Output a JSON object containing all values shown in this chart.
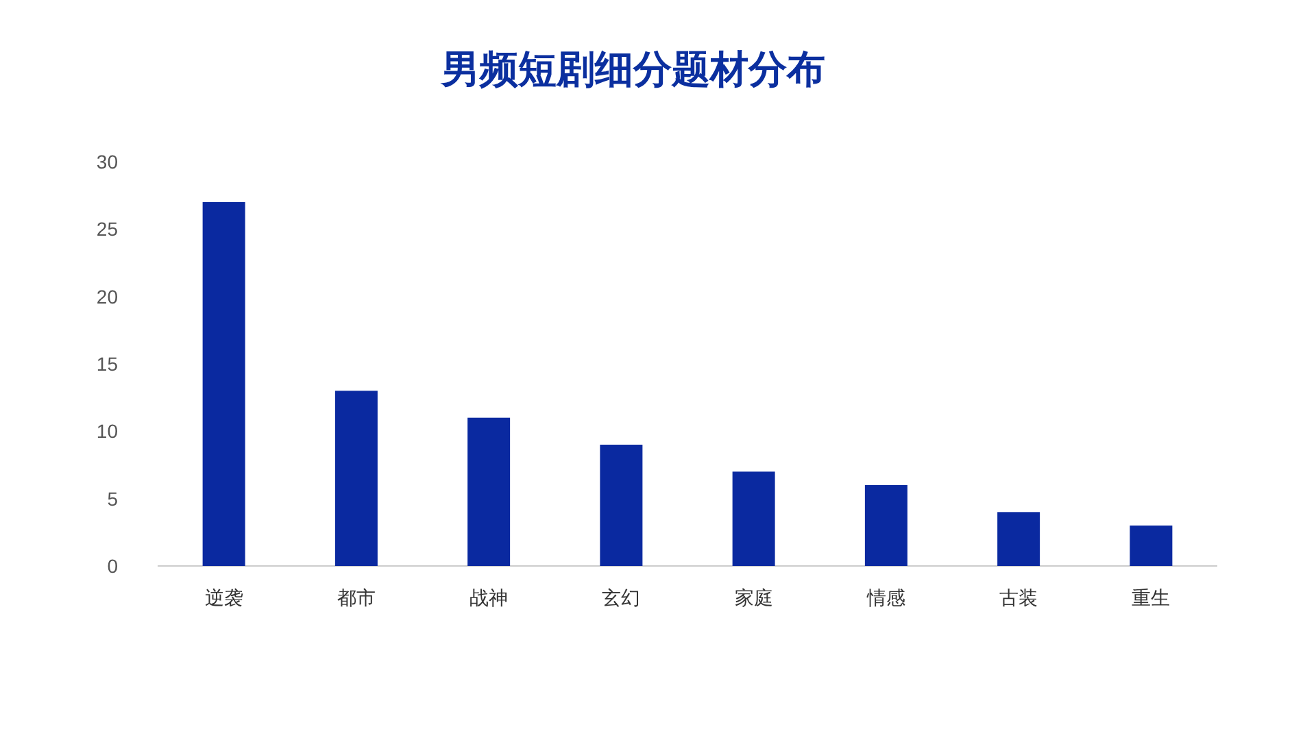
{
  "chart_data": {
    "type": "bar",
    "title": "男频短剧细分题材分布",
    "categories": [
      "逆袭",
      "都市",
      "战神",
      "玄幻",
      "家庭",
      "情感",
      "古装",
      "重生"
    ],
    "values": [
      27,
      13,
      11,
      9,
      7,
      6,
      4,
      3
    ],
    "color": "#0a29a0",
    "ylim": [
      0,
      30
    ],
    "yticks": [
      0,
      5,
      10,
      15,
      20,
      25,
      30
    ],
    "grid": false
  }
}
